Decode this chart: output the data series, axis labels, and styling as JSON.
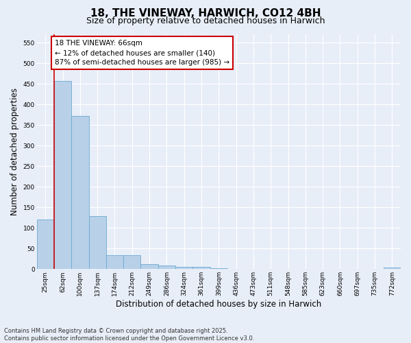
{
  "title": "18, THE VINEWAY, HARWICH, CO12 4BH",
  "subtitle": "Size of property relative to detached houses in Harwich",
  "xlabel": "Distribution of detached houses by size in Harwich",
  "ylabel": "Number of detached properties",
  "categories": [
    "25sqm",
    "62sqm",
    "100sqm",
    "137sqm",
    "174sqm",
    "212sqm",
    "249sqm",
    "286sqm",
    "324sqm",
    "361sqm",
    "399sqm",
    "436sqm",
    "473sqm",
    "511sqm",
    "548sqm",
    "585sqm",
    "623sqm",
    "660sqm",
    "697sqm",
    "735sqm",
    "772sqm"
  ],
  "values": [
    120,
    457,
    372,
    128,
    33,
    33,
    12,
    9,
    6,
    5,
    2,
    0,
    1,
    0,
    0,
    0,
    0,
    0,
    0,
    0,
    3
  ],
  "bar_color": "#b8d0e8",
  "bar_edge_color": "#6aaad4",
  "vline_color": "#cc0000",
  "vline_x_index": 0.5,
  "annotation_box_text": "18 THE VINEWAY: 66sqm\n← 12% of detached houses are smaller (140)\n87% of semi-detached houses are larger (985) →",
  "annotation_box_edge_color": "#cc0000",
  "annotation_box_facecolor": "white",
  "ylim": [
    0,
    570
  ],
  "yticks": [
    0,
    50,
    100,
    150,
    200,
    250,
    300,
    350,
    400,
    450,
    500,
    550
  ],
  "footer_line1": "Contains HM Land Registry data © Crown copyright and database right 2025.",
  "footer_line2": "Contains public sector information licensed under the Open Government Licence v3.0.",
  "background_color": "#e8eef8",
  "title_fontsize": 11,
  "subtitle_fontsize": 9,
  "tick_fontsize": 6.5,
  "label_fontsize": 8.5,
  "annotation_fontsize": 7.5,
  "footer_fontsize": 6
}
